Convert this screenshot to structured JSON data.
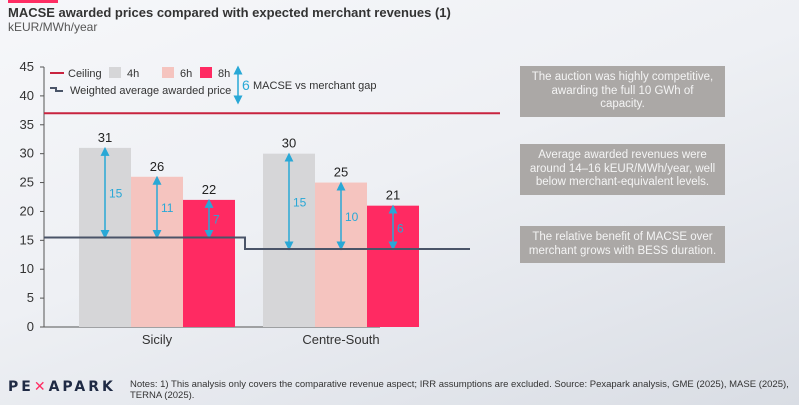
{
  "header": {
    "title": "MACSE awarded prices compared with expected merchant revenues (1)",
    "subtitle": "kEUR/MWh/year"
  },
  "colors": {
    "accent": "#ff2d63",
    "ceiling": "#c8233f",
    "bar_4h": "#d6d6d8",
    "bar_6h": "#f5c4bf",
    "bar_8h": "#ff2a62",
    "weighted_avg": "#4a5468",
    "gap_arrow": "#29a8d6",
    "note_box": "#aba8a6"
  },
  "chart_data": {
    "type": "bar",
    "title": "MACSE awarded prices compared with expected merchant revenues (1)",
    "ylabel": "kEUR/MWh/year",
    "xlabel": "",
    "ylim": [
      0,
      45
    ],
    "yticks": [
      0,
      5,
      10,
      15,
      20,
      25,
      30,
      35,
      40,
      45
    ],
    "categories": [
      "Sicily",
      "Centre-South"
    ],
    "series": [
      {
        "name": "4h",
        "values": [
          31,
          30
        ]
      },
      {
        "name": "6h",
        "values": [
          26,
          25
        ]
      },
      {
        "name": "8h",
        "values": [
          22,
          21
        ]
      }
    ],
    "data_labels": [
      [
        "31",
        "26",
        "22"
      ],
      [
        "30",
        "25",
        "21"
      ]
    ],
    "gaps": [
      [
        15,
        11,
        7
      ],
      [
        15,
        10,
        6
      ]
    ],
    "ceiling": 37,
    "weighted_average_awarded_price": [
      15.5,
      13.5
    ],
    "legend": {
      "placement": "top-left",
      "items": [
        "Ceiling",
        "4h",
        "6h",
        "8h",
        "Weighted average awarded price"
      ],
      "gap_sample_value": "6",
      "gap_label": "MACSE vs merchant gap"
    },
    "grid": false
  },
  "notes_boxes": [
    "The auction was highly competitive, awarding the full 10 GWh of capacity.",
    "Average awarded revenues were around 14–16 kEUR/MWh/year, well below merchant-equivalent levels.",
    "The relative benefit of MACSE over merchant grows with BESS duration."
  ],
  "footer": {
    "logo_pre": "PE",
    "logo_x": "✕",
    "logo_post": "APARK",
    "notes": "Notes: 1) This analysis only covers the comparative revenue aspect; IRR assumptions are excluded. Source: Pexapark analysis, GME (2025), MASE (2025), TERNA (2025)."
  }
}
